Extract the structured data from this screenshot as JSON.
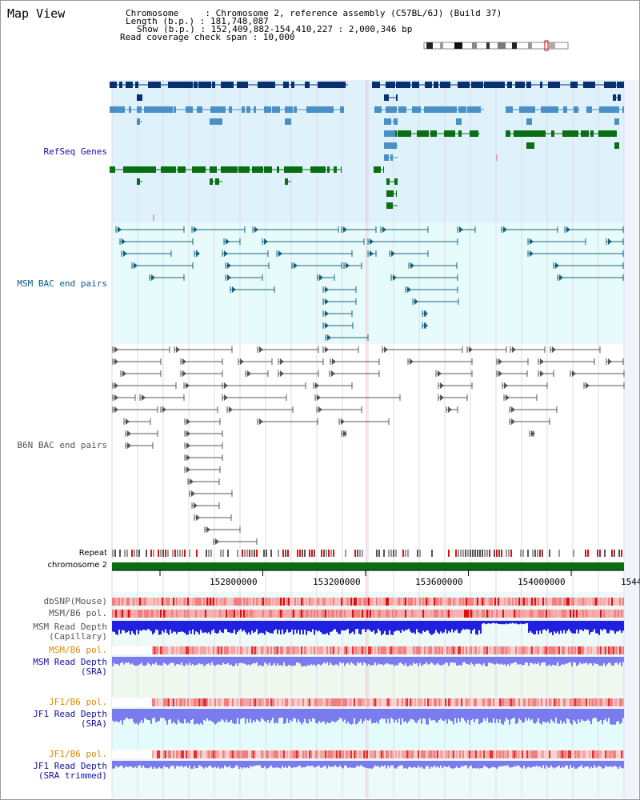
{
  "view": {
    "title": "Map View",
    "info": {
      "chromosome": "Chromosome     : Chromosome 2, reference assembly (C57BL/6J) (Build 37)",
      "length": "Length (b.p.) : 181,748,087",
      "show": "Show (b.p.) : 152,409,882-154,410,227 : 2,000,346 bp",
      "span": "Read coverage check span : 10,000"
    }
  },
  "tracks": {
    "refseq": "RefSeq Genes",
    "msm_bac": "MSM BAC end pairs",
    "b6n_bac": "B6N BAC end pairs",
    "repeat": "Repeat",
    "chromosome": "chromosome 2",
    "dbsnp": "dbSNP(Mouse)",
    "msm_b6_pol_1": "MSM/B6 pol.",
    "msm_depth_cap": "MSM Read Depth\n(Capillary)",
    "msm_b6_pol_2": "MSM/B6 pol.",
    "msm_depth_sra": "MSM Read Depth\n(SRA)",
    "jf1_b6_pol_1": "JF1/B6 pol.",
    "jf1_depth_sra": "JF1 Read Depth\n(SRA)",
    "jf1_b6_pol_2": "JF1/B6 pol.",
    "jf1_depth_trim": "JF1 Read Depth\n(SRA trimmed)"
  },
  "axis": {
    "ticks": [
      "152800000",
      "153200000",
      "153600000",
      "154000000",
      "1544"
    ]
  },
  "colors": {
    "refseq_bg": "#dff1fb",
    "bac_bg": "#e8fbfb",
    "gene_navy": "#0a2f6e",
    "gene_blue": "#4a90c4",
    "gene_green": "#0a6e12",
    "msm_line": "#16607e",
    "b6n_line": "#555555",
    "chrom_green": "#0a6e12",
    "depth_blue": "#2020e0",
    "depth_light": "#7b7bf0"
  }
}
